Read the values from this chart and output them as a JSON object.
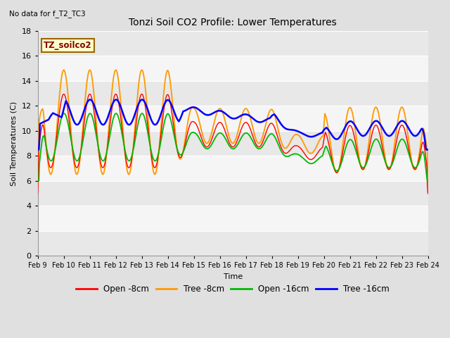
{
  "title": "Tonzi Soil CO2 Profile: Lower Temperatures",
  "subtitle": "No data for f_T2_TC3",
  "xlabel": "Time",
  "ylabel": "Soil Temperatures (C)",
  "box_label": "TZ_soilco2",
  "ylim": [
    0,
    18
  ],
  "yticks": [
    0,
    2,
    4,
    6,
    8,
    10,
    12,
    14,
    16,
    18
  ],
  "date_labels": [
    "Feb 9",
    "Feb 10",
    "Feb 11",
    "Feb 12",
    "Feb 13",
    "Feb 14",
    "Feb 15",
    "Feb 16",
    "Feb 17",
    "Feb 18",
    "Feb 19",
    "Feb 20",
    "Feb 21",
    "Feb 22",
    "Feb 23",
    "Feb 24"
  ],
  "colors": {
    "open_8cm": "#ff0000",
    "tree_8cm": "#ff9900",
    "open_16cm": "#00bb00",
    "tree_16cm": "#0000ff"
  },
  "legend_labels": [
    "Open -8cm",
    "Tree -8cm",
    "Open -16cm",
    "Tree -16cm"
  ],
  "background_color": "#e0e0e0",
  "plot_bg_color": "#f2f2f2",
  "grid_color": "#ffffff",
  "n_points": 720,
  "figsize": [
    6.4,
    4.8
  ],
  "dpi": 100
}
